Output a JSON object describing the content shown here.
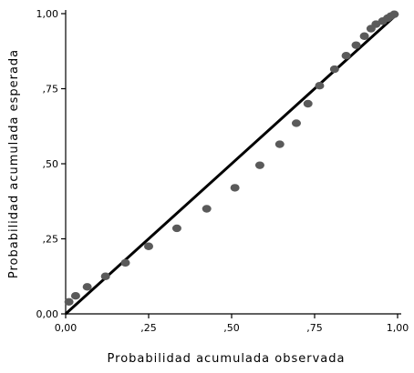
{
  "chart_data": {
    "type": "scatter",
    "title": "",
    "xlabel": "Probabilidad acumulada observada",
    "ylabel": "Probabilidad acumulada esperada",
    "xlim": [
      0,
      1
    ],
    "ylim": [
      0,
      1
    ],
    "x_ticks": [
      0,
      0.25,
      0.5,
      0.75,
      1.0
    ],
    "x_tick_labels": [
      "0,00",
      ",25",
      ",50",
      ",75",
      "1,00"
    ],
    "y_ticks": [
      0,
      0.25,
      0.5,
      0.75,
      1.0
    ],
    "y_tick_labels": [
      "0,00",
      ",25",
      ",50",
      ",75",
      "1,00"
    ],
    "grid": false,
    "reference_line": {
      "from": [
        0,
        0
      ],
      "to": [
        1,
        1
      ]
    },
    "marker_color": "#5a5a5a",
    "line_color": "#000000",
    "points": [
      {
        "x": 0.01,
        "y": 0.04
      },
      {
        "x": 0.03,
        "y": 0.06
      },
      {
        "x": 0.065,
        "y": 0.09
      },
      {
        "x": 0.12,
        "y": 0.125
      },
      {
        "x": 0.18,
        "y": 0.17
      },
      {
        "x": 0.25,
        "y": 0.225
      },
      {
        "x": 0.335,
        "y": 0.285
      },
      {
        "x": 0.425,
        "y": 0.35
      },
      {
        "x": 0.51,
        "y": 0.42
      },
      {
        "x": 0.585,
        "y": 0.495
      },
      {
        "x": 0.645,
        "y": 0.565
      },
      {
        "x": 0.695,
        "y": 0.635
      },
      {
        "x": 0.73,
        "y": 0.7
      },
      {
        "x": 0.765,
        "y": 0.76
      },
      {
        "x": 0.81,
        "y": 0.815
      },
      {
        "x": 0.845,
        "y": 0.86
      },
      {
        "x": 0.875,
        "y": 0.895
      },
      {
        "x": 0.9,
        "y": 0.925
      },
      {
        "x": 0.92,
        "y": 0.95
      },
      {
        "x": 0.935,
        "y": 0.965
      },
      {
        "x": 0.955,
        "y": 0.975
      },
      {
        "x": 0.97,
        "y": 0.985
      },
      {
        "x": 0.98,
        "y": 0.992
      },
      {
        "x": 0.99,
        "y": 0.998
      }
    ]
  }
}
